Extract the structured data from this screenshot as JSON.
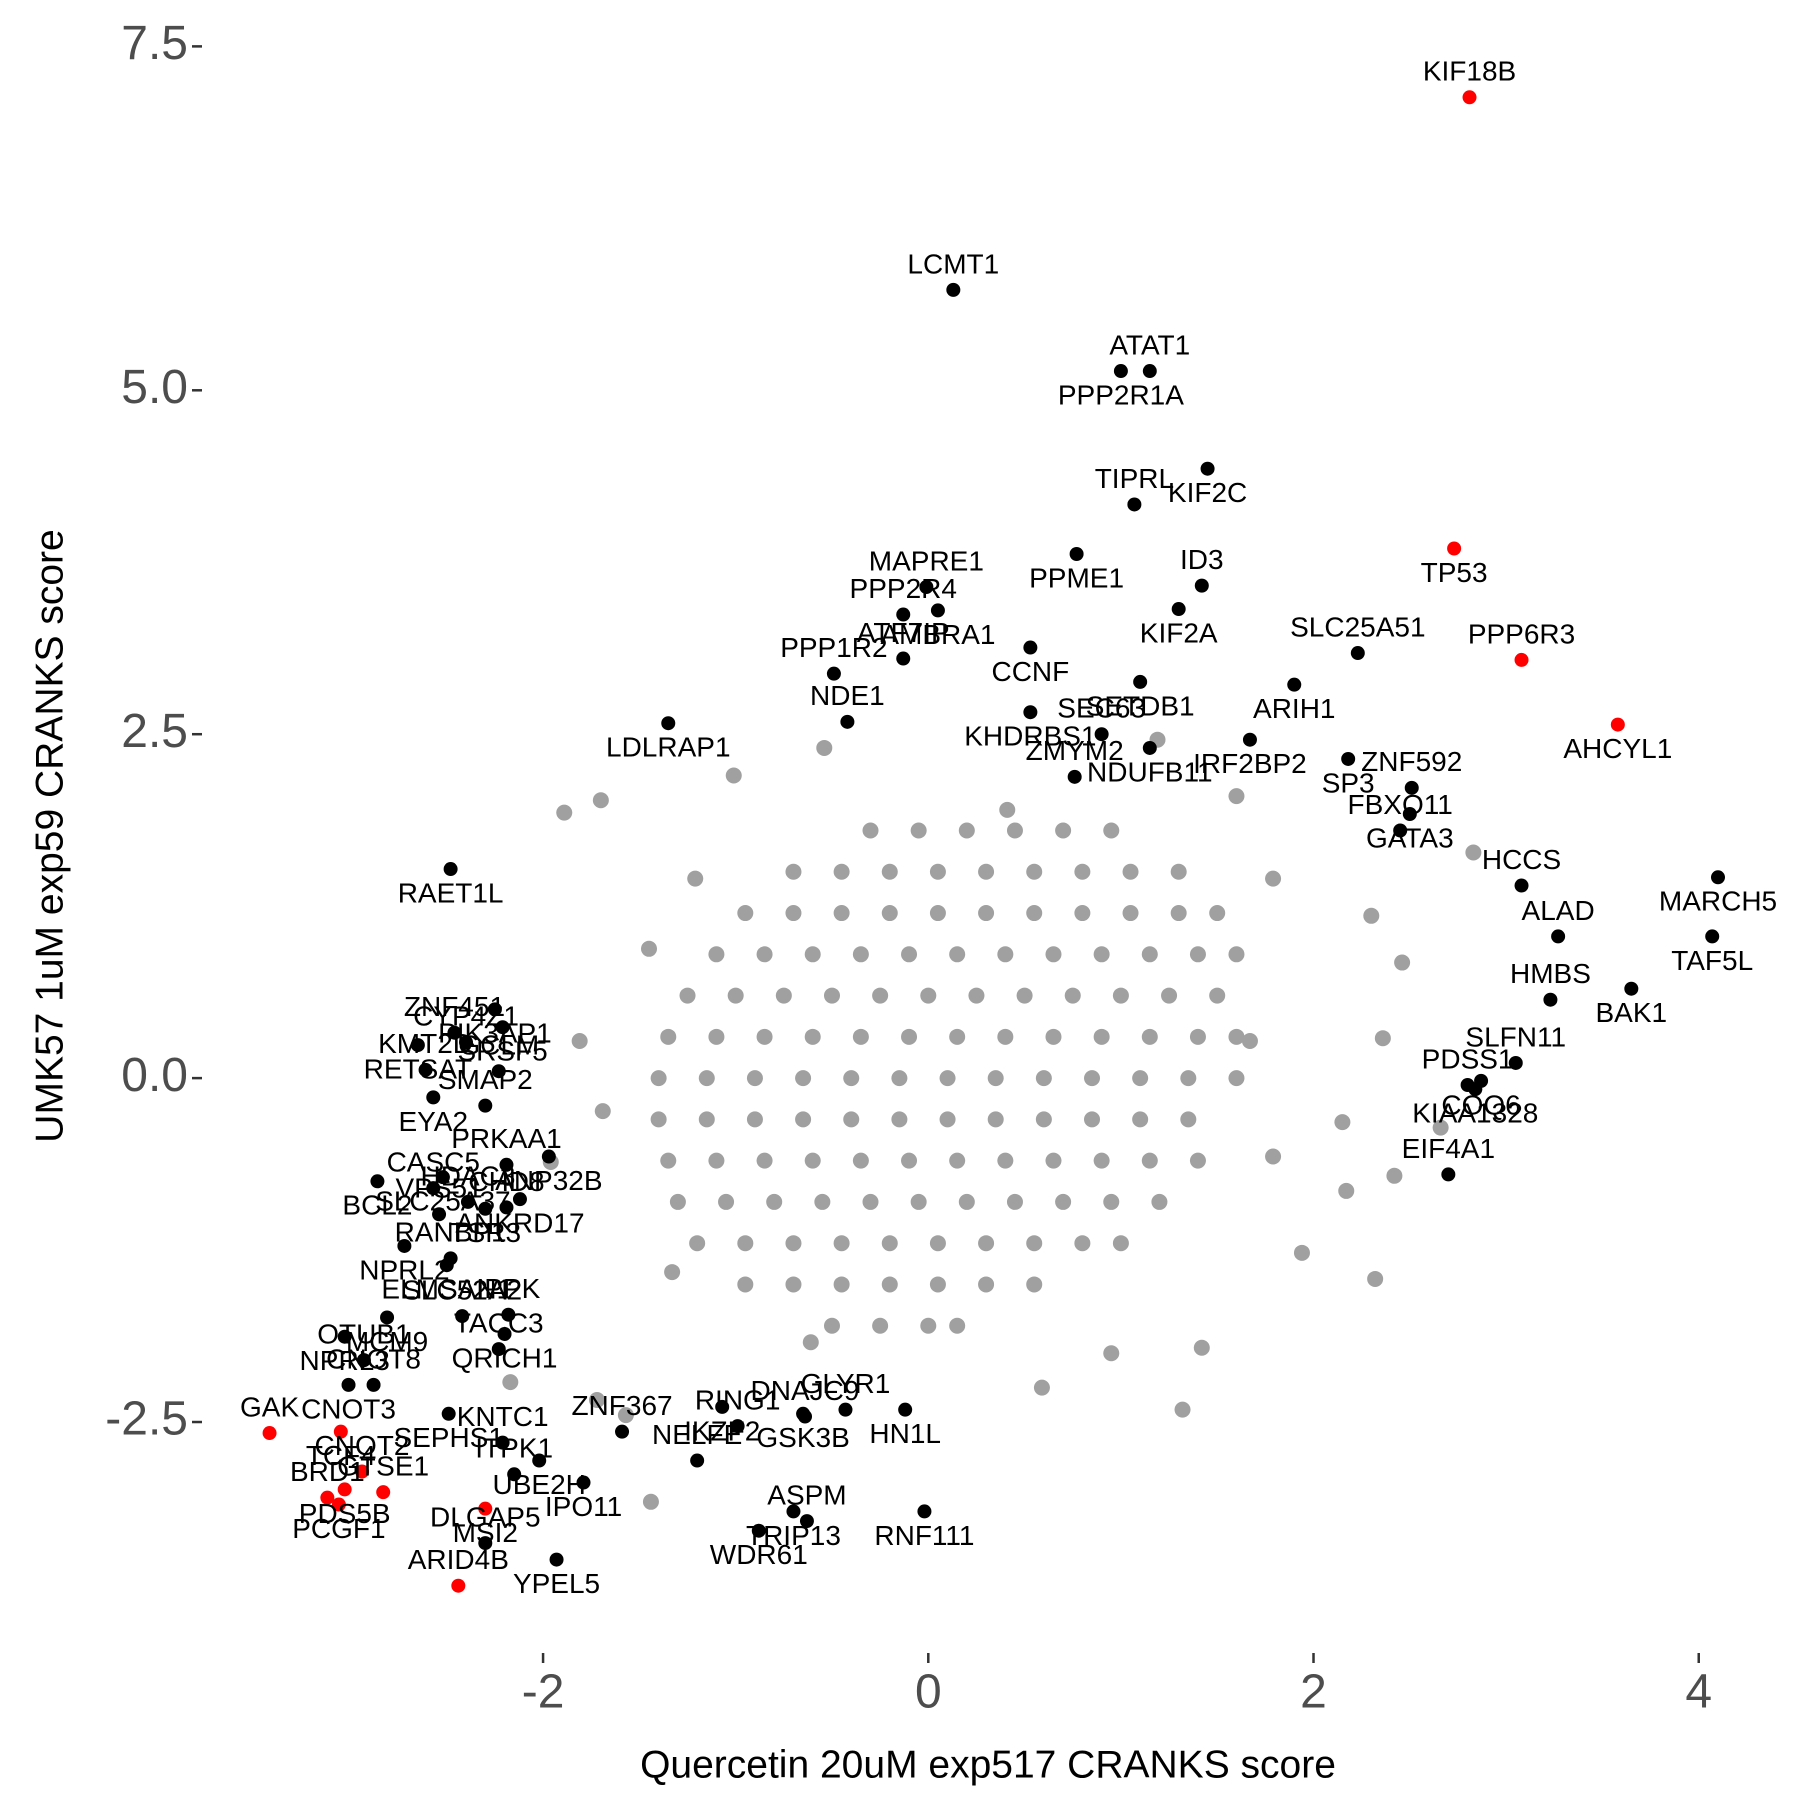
{
  "chart_data": {
    "type": "scatter",
    "xlabel": "Quercetin 20uM exp517 CRANKS score",
    "ylabel": "UMK57 1uM exp59 CRANKS score",
    "xlim": [
      -3.75,
      4.37
    ],
    "ylim": [
      -4.15,
      7.67
    ],
    "xticks": [
      -2,
      0,
      2,
      4
    ],
    "yticks": [
      -2.5,
      {
        "value": 0,
        "label": "0.0"
      },
      2.5,
      {
        "value": 5,
        "label": "5.0"
      },
      7.5
    ],
    "grid": false,
    "series": [
      {
        "color": "#a0a0a0",
        "x": [
          -0.3,
          -0.05,
          0.2,
          0.45,
          0.7,
          0.95,
          -0.7,
          -0.45,
          -0.2,
          0.05,
          0.3,
          0.55,
          0.8,
          1.05,
          1.3,
          -0.95,
          -0.7,
          -0.45,
          -0.2,
          0.05,
          0.3,
          0.55,
          0.8,
          1.05,
          1.3,
          1.5,
          -1.1,
          -0.85,
          -0.6,
          -0.35,
          -0.1,
          0.15,
          0.4,
          0.65,
          0.9,
          1.15,
          1.4,
          1.6,
          -1.25,
          -1.0,
          -0.75,
          -0.5,
          -0.25,
          0,
          0.25,
          0.5,
          0.75,
          1.0,
          1.25,
          1.5,
          -1.35,
          -1.1,
          -0.85,
          -0.6,
          -0.35,
          -0.1,
          0.15,
          0.4,
          0.65,
          0.9,
          1.15,
          1.4,
          1.6,
          -1.4,
          -1.15,
          -0.9,
          -0.65,
          -0.4,
          -0.15,
          0.1,
          0.35,
          0.6,
          0.85,
          1.1,
          1.35,
          1.6,
          -1.4,
          -1.15,
          -0.9,
          -0.65,
          -0.4,
          -0.15,
          0.1,
          0.35,
          0.6,
          0.85,
          1.1,
          1.35,
          -1.35,
          -1.1,
          -0.85,
          -0.6,
          -0.35,
          -0.1,
          0.15,
          0.4,
          0.65,
          0.9,
          1.15,
          1.4,
          -1.3,
          -1.05,
          -0.8,
          -0.55,
          -0.3,
          -0.05,
          0.2,
          0.45,
          0.7,
          0.95,
          1.2,
          -1.2,
          -0.95,
          -0.7,
          -0.45,
          -0.2,
          0.05,
          0.3,
          0.55,
          0.8,
          1.0,
          -0.95,
          -0.7,
          -0.45,
          -0.2,
          0.05,
          0.3,
          0.55,
          -0.5,
          -0.25,
          0,
          0.15,
          -1.89,
          -1.7,
          -1.01,
          -0.54,
          2.83,
          2.32,
          1.32,
          1.42,
          2.17,
          2.46,
          2.36,
          2.3,
          2.66,
          2.42,
          2.15,
          1.94,
          1.6,
          -1.57,
          -1.72,
          -2.17,
          -1.44,
          -1.96,
          -1.69,
          -1.81,
          -1.45,
          -1.21,
          1.79,
          0.59,
          -0.61,
          0.95,
          1.67,
          1.79,
          -1.33,
          1.19,
          0.41
        ],
        "values": [
          1.8,
          1.8,
          1.8,
          1.8,
          1.8,
          1.8,
          1.5,
          1.5,
          1.5,
          1.5,
          1.5,
          1.5,
          1.5,
          1.5,
          1.5,
          1.2,
          1.2,
          1.2,
          1.2,
          1.2,
          1.2,
          1.2,
          1.2,
          1.2,
          1.2,
          1.2,
          0.9,
          0.9,
          0.9,
          0.9,
          0.9,
          0.9,
          0.9,
          0.9,
          0.9,
          0.9,
          0.9,
          0.9,
          0.6,
          0.6,
          0.6,
          0.6,
          0.6,
          0.6,
          0.6,
          0.6,
          0.6,
          0.6,
          0.6,
          0.6,
          0.3,
          0.3,
          0.3,
          0.3,
          0.3,
          0.3,
          0.3,
          0.3,
          0.3,
          0.3,
          0.3,
          0.3,
          0.3,
          0,
          0,
          0,
          0,
          0,
          0,
          0,
          0,
          0,
          0,
          0,
          0,
          0,
          -0.3,
          -0.3,
          -0.3,
          -0.3,
          -0.3,
          -0.3,
          -0.3,
          -0.3,
          -0.3,
          -0.3,
          -0.3,
          -0.3,
          -0.6,
          -0.6,
          -0.6,
          -0.6,
          -0.6,
          -0.6,
          -0.6,
          -0.6,
          -0.6,
          -0.6,
          -0.6,
          -0.6,
          -0.9,
          -0.9,
          -0.9,
          -0.9,
          -0.9,
          -0.9,
          -0.9,
          -0.9,
          -0.9,
          -0.9,
          -0.9,
          -1.2,
          -1.2,
          -1.2,
          -1.2,
          -1.2,
          -1.2,
          -1.2,
          -1.2,
          -1.2,
          -1.2,
          -1.5,
          -1.5,
          -1.5,
          -1.5,
          -1.5,
          -1.5,
          -1.5,
          -1.8,
          -1.8,
          -1.8,
          -1.8,
          1.93,
          2.02,
          2.2,
          2.4,
          1.64,
          -1.46,
          -2.41,
          -1.96,
          -0.82,
          0.84,
          0.29,
          1.18,
          -0.36,
          -0.71,
          -0.32,
          -1.27,
          2.05,
          -2.45,
          -2.34,
          -2.21,
          -3.08,
          -0.61,
          -0.24,
          0.27,
          0.94,
          1.45,
          1.45,
          -2.25,
          -1.92,
          -2.0,
          0.27,
          -0.57,
          -1.41,
          2.46,
          1.95
        ]
      },
      {
        "color": "#000000",
        "labels": [
          "LCMT1",
          "PPP2R1A",
          "ATAT1",
          "KIF2C",
          "TIPRL",
          "PPME1",
          "ID3",
          "KIF2A",
          "MAPRE1",
          "AMBRA1",
          "PPP2R4",
          "CCNF",
          "SLC25A51",
          "ARIH1",
          "ATF7IP",
          "SETDB1",
          "PPP1R2",
          "LDLRAP1",
          "NDE1",
          "KHDRBS1",
          "ZMYM2",
          "NDUFB11",
          "SEC63",
          "SP3",
          "ZNF592",
          "GATA3",
          "FBXO11",
          "IRF2BP2",
          "HCCS",
          "MARCH5",
          "ALAD",
          "TAF5L",
          "HMBS",
          "BAK1",
          "SLFN11",
          "COQ6",
          "PDSS1",
          "KIAA1328",
          "EIF4A1",
          "RAET1L",
          "ZNF451",
          "PIK3AP1",
          "CYP4Z1",
          "SRSF5",
          "GCLM",
          "RETSAT",
          "KMT2D",
          "EYA2",
          "SMAP2",
          "SLC25A37",
          "CASC5",
          "BCL2",
          "VPS51",
          "NPRL2",
          "HDAC3",
          "TSR3",
          "PRKAA1",
          "ANP32B",
          "CHD8",
          "ANKRD17",
          "RANBP1",
          "ELMSAN1",
          "IPPK",
          "MCM9",
          "SLC52A2",
          "QRICH1",
          "TACC3",
          "NPRL3",
          "OTUB1",
          "CNOT3",
          "CNOT8",
          "SEPHS1",
          "KNTC1",
          "UBE2H",
          "ITPK1",
          "IPO11",
          "ZNF367",
          "WDR61",
          "NELFE",
          "YPEL5",
          "DLGAP5",
          "IKZF2",
          "RING1",
          "GSK3B",
          "GLYR1",
          "HN1L",
          "DNAJC9",
          "TRIP13",
          "ASPM",
          "RNF111"
        ],
        "x": [
          0.13,
          1.0,
          1.15,
          1.45,
          1.07,
          0.77,
          1.42,
          1.3,
          -0.01,
          0.05,
          -0.13,
          0.53,
          2.23,
          1.9,
          -0.13,
          1.1,
          -0.49,
          -1.35,
          -0.42,
          0.53,
          0.76,
          1.15,
          0.9,
          2.18,
          2.51,
          2.5,
          2.45,
          1.67,
          3.08,
          4.1,
          3.27,
          4.07,
          3.23,
          3.65,
          3.05,
          2.87,
          2.8,
          2.84,
          2.7,
          -2.48,
          -2.46,
          -2.25,
          -2.4,
          -2.21,
          -2.23,
          -2.65,
          -2.61,
          -2.57,
          -2.3,
          -2.52,
          -2.57,
          -2.86,
          -2.54,
          -2.72,
          -2.39,
          -2.3,
          -2.19,
          -1.97,
          -2.19,
          -2.12,
          -2.48,
          -2.5,
          -2.18,
          -2.81,
          -2.42,
          -2.2,
          -2.23,
          -3.03,
          -2.93,
          -3.01,
          -2.88,
          -2.49,
          -2.21,
          -2.02,
          -2.15,
          -1.79,
          -1.59,
          -0.88,
          -1.2,
          -1.93,
          -2.3,
          -1.07,
          -0.99,
          -0.65,
          -0.43,
          -0.12,
          -0.64,
          -0.7,
          -0.63,
          -0.02
        ],
        "values": [
          5.73,
          5.14,
          5.14,
          4.43,
          4.17,
          3.81,
          3.58,
          3.41,
          3.57,
          3.4,
          3.37,
          3.13,
          3.09,
          2.86,
          3.05,
          2.88,
          2.94,
          2.58,
          2.59,
          2.66,
          2.19,
          2.4,
          2.5,
          2.32,
          2.11,
          1.92,
          1.8,
          2.46,
          1.4,
          1.46,
          1.03,
          1.03,
          0.57,
          0.65,
          0.11,
          -0.02,
          -0.05,
          -0.08,
          -0.7,
          1.52,
          0.33,
          0.5,
          0.26,
          0.37,
          0.05,
          0.24,
          0.06,
          -0.14,
          -0.2,
          -0.72,
          -0.8,
          -0.75,
          -0.99,
          -1.22,
          -0.9,
          -0.95,
          -0.63,
          -0.57,
          -0.94,
          -0.88,
          -1.31,
          -1.36,
          -1.72,
          -1.74,
          -1.73,
          -1.86,
          -1.97,
          -1.88,
          -2.05,
          -2.23,
          -2.23,
          -2.44,
          -2.65,
          -2.78,
          -2.88,
          -2.94,
          -2.57,
          -3.29,
          -2.78,
          -3.5,
          -3.38,
          -2.39,
          -2.53,
          -2.44,
          -2.41,
          -2.41,
          -2.46,
          -3.15,
          -3.22,
          -3.15
        ]
      },
      {
        "color": "#ff0000",
        "labels": [
          "KIF18B",
          "TP53",
          "PPP6R3",
          "AHCYL1",
          "GAK",
          "TCF4",
          "CNOT2",
          "PDS5B",
          "GTSE1",
          "PCGF1",
          "BRD1",
          "MSI2",
          "ARID4B"
        ],
        "x": [
          2.81,
          2.73,
          3.08,
          3.58,
          -3.42,
          -3.05,
          -2.94,
          -3.03,
          -2.83,
          -3.06,
          -3.12,
          -2.3,
          -2.44
        ],
        "values": [
          7.13,
          3.85,
          3.04,
          2.57,
          -2.58,
          -2.57,
          -2.86,
          -2.99,
          -3.01,
          -3.1,
          -3.05,
          -3.13,
          -3.69
        ]
      }
    ]
  }
}
